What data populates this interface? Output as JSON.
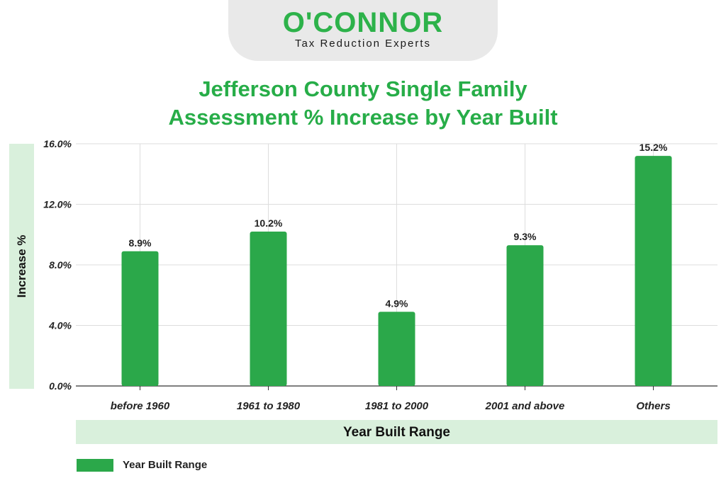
{
  "logo": {
    "name": "O'CONNOR",
    "tagline": "Tax Reduction Experts"
  },
  "chart_data": {
    "type": "bar",
    "title_lines": [
      "Jefferson County Single Family",
      "Assessment % Increase by Year Built"
    ],
    "xlabel": "Year Built Range",
    "ylabel": "Increase %",
    "categories": [
      "before 1960",
      "1961 to 1980",
      "1981 to 2000",
      "2001 and above",
      "Others"
    ],
    "series": [
      {
        "name": "Year Built Range",
        "values": [
          8.9,
          10.2,
          4.9,
          9.3,
          15.2
        ],
        "color": "#2ba84a"
      }
    ],
    "value_labels": [
      "8.9%",
      "10.2%",
      "4.9%",
      "9.3%",
      "15.2%"
    ],
    "ylim": [
      0,
      16
    ],
    "yticks": [
      0,
      4,
      8,
      12,
      16
    ],
    "ytick_labels": [
      "0.0%",
      "4.0%",
      "8.0%",
      "12.0%",
      "16.0%"
    ],
    "grid": true,
    "legend": "bottom-left"
  }
}
